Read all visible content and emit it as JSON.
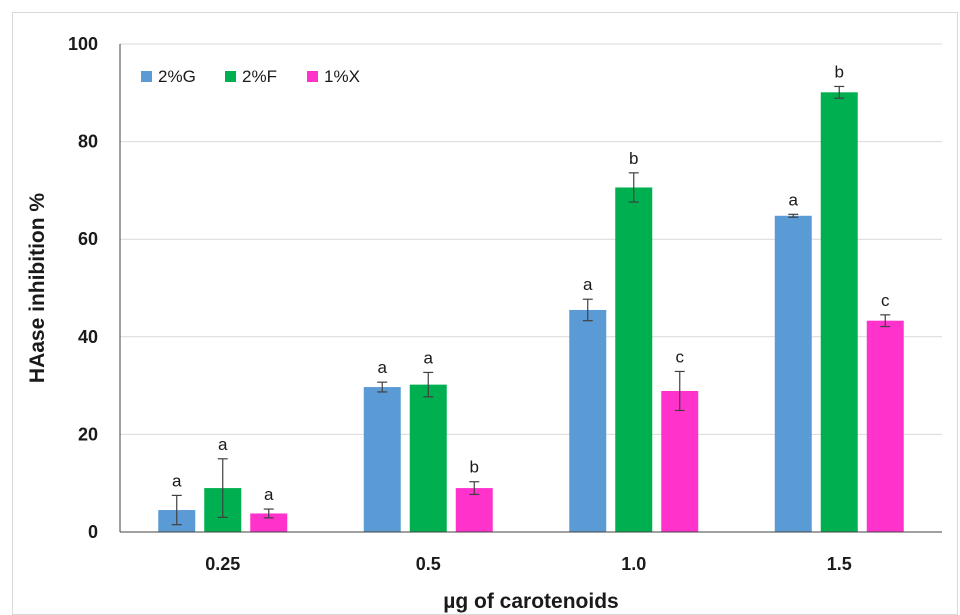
{
  "chart_data": {
    "type": "bar",
    "title": "",
    "xlabel": "µg of carotenoids",
    "ylabel": "HAase inhibition %",
    "categories": [
      "0.25",
      "0.5",
      "1.0",
      "1.5"
    ],
    "ylim": [
      0,
      100
    ],
    "yticks": [
      "0",
      "20",
      "40",
      "60",
      "80",
      "100"
    ],
    "grid": true,
    "legend_position": "top-left",
    "series": [
      {
        "name": "2%G",
        "color": "#5b9bd5",
        "values": [
          4.5,
          29.7,
          45.5,
          64.8
        ],
        "errors": [
          3.0,
          1.0,
          2.2,
          0.3
        ],
        "letters": [
          "a",
          "a",
          "a",
          "a"
        ]
      },
      {
        "name": "2%F",
        "color": "#00b050",
        "values": [
          9.0,
          30.2,
          70.6,
          90.1
        ],
        "errors": [
          6.0,
          2.5,
          3.0,
          1.2
        ],
        "letters": [
          "a",
          "a",
          "b",
          "b"
        ]
      },
      {
        "name": "1%X",
        "color": "#ff33cc",
        "values": [
          3.8,
          9.0,
          28.9,
          43.3
        ],
        "errors": [
          0.9,
          1.3,
          4.0,
          1.2
        ],
        "letters": [
          "a",
          "b",
          "c",
          "c"
        ]
      }
    ]
  }
}
